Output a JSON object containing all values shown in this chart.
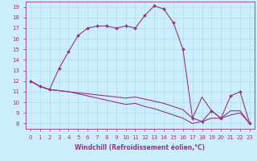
{
  "xlabel": "Windchill (Refroidissement éolien,°C)",
  "background_color": "#cceeff",
  "line_color": "#993388",
  "grid_color": "#aadddd",
  "xlim": [
    -0.5,
    23.5
  ],
  "ylim": [
    7.5,
    19.5
  ],
  "xticks": [
    0,
    1,
    2,
    3,
    4,
    5,
    6,
    7,
    8,
    9,
    10,
    11,
    12,
    13,
    14,
    15,
    16,
    17,
    18,
    19,
    20,
    21,
    22,
    23
  ],
  "yticks": [
    8,
    9,
    10,
    11,
    12,
    13,
    14,
    15,
    16,
    17,
    18,
    19
  ],
  "series1_x": [
    0,
    1,
    2,
    3,
    4,
    5,
    6,
    7,
    8,
    9,
    10,
    11,
    12,
    13,
    14,
    15,
    16,
    17,
    18,
    19,
    20,
    21,
    22,
    23
  ],
  "series1_y": [
    12.0,
    11.5,
    11.2,
    13.2,
    14.8,
    16.3,
    17.0,
    17.2,
    17.2,
    17.0,
    17.2,
    17.0,
    18.2,
    19.1,
    18.8,
    17.5,
    15.0,
    8.5,
    8.2,
    9.2,
    8.5,
    10.6,
    11.0,
    8.0
  ],
  "series2_x": [
    0,
    1,
    2,
    3,
    4,
    5,
    6,
    7,
    8,
    9,
    10,
    11,
    12,
    13,
    14,
    15,
    16,
    17,
    18,
    19,
    20,
    21,
    22,
    23
  ],
  "series2_y": [
    12.0,
    11.5,
    11.2,
    11.1,
    11.0,
    10.9,
    10.8,
    10.7,
    10.6,
    10.5,
    10.4,
    10.5,
    10.3,
    10.1,
    9.9,
    9.6,
    9.3,
    8.5,
    10.5,
    9.2,
    8.5,
    9.2,
    9.2,
    8.0
  ],
  "series3_x": [
    0,
    1,
    2,
    3,
    4,
    5,
    6,
    7,
    8,
    9,
    10,
    11,
    12,
    13,
    14,
    15,
    16,
    17,
    18,
    19,
    20,
    21,
    22,
    23
  ],
  "series3_y": [
    12.0,
    11.5,
    11.2,
    11.1,
    11.0,
    10.8,
    10.6,
    10.4,
    10.2,
    10.0,
    9.8,
    9.9,
    9.6,
    9.4,
    9.1,
    8.8,
    8.5,
    8.0,
    8.2,
    8.5,
    8.5,
    8.8,
    9.0,
    8.0
  ],
  "xlabel_fontsize": 5.5,
  "tick_fontsize": 5
}
